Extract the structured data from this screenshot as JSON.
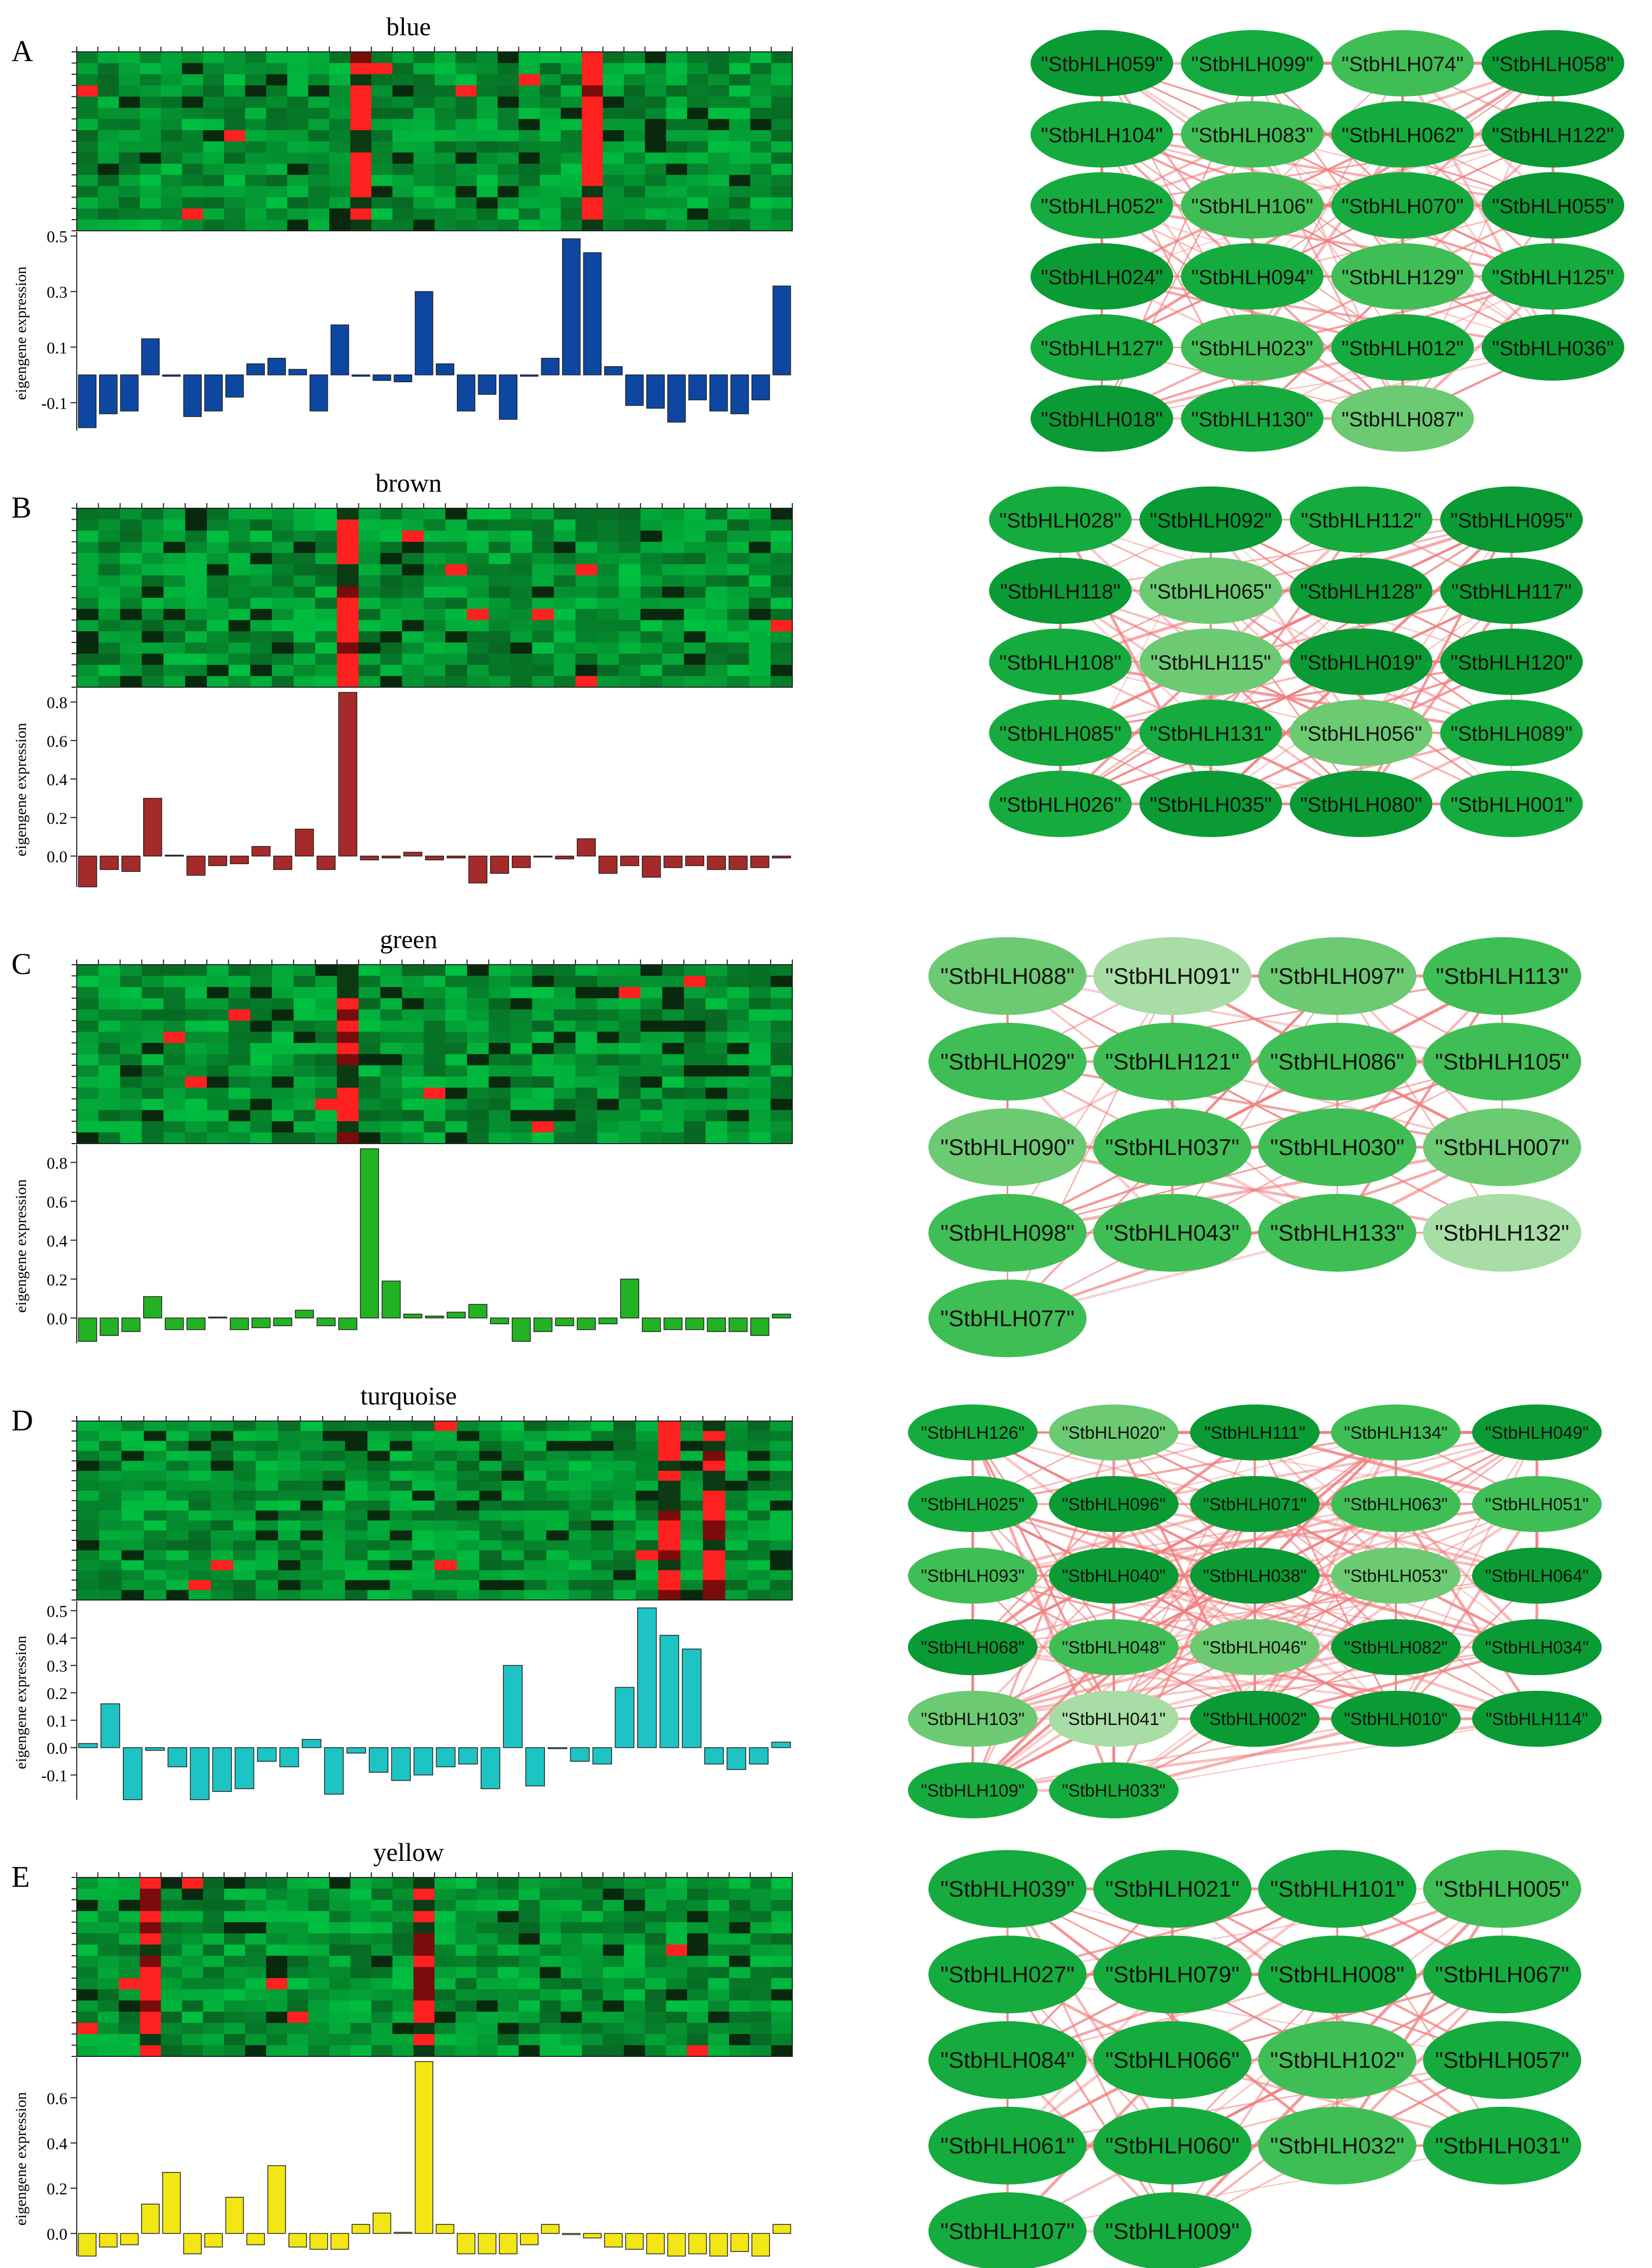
{
  "panels": [
    {
      "letter": "A",
      "module": "blue",
      "bar_color": "#0d47a1",
      "heatmap_rows": 16,
      "hot_cols": [
        13,
        24
      ],
      "chart_data": {
        "type": "bar",
        "ylabel": "eigengene expression",
        "yticks": [
          "-0.1",
          "0.1",
          "0.3",
          "0.5"
        ],
        "ytick_values": [
          -0.1,
          0.1,
          0.3,
          0.5
        ],
        "ylim": [
          -0.2,
          0.5
        ],
        "values": [
          -0.19,
          -0.14,
          -0.13,
          0.13,
          -0.005,
          -0.15,
          -0.13,
          -0.08,
          0.04,
          0.06,
          0.02,
          -0.13,
          0.18,
          -0.005,
          -0.02,
          -0.025,
          0.3,
          0.04,
          -0.13,
          -0.07,
          -0.16,
          -0.005,
          0.06,
          0.49,
          0.44,
          0.03,
          -0.11,
          -0.12,
          -0.17,
          -0.09,
          -0.13,
          -0.14,
          -0.09,
          0.32
        ]
      },
      "network": {
        "tone": [
          0,
          1,
          2,
          0,
          1,
          2,
          1,
          0,
          1,
          2,
          1,
          0,
          0,
          1,
          2,
          1,
          1,
          2,
          1,
          0,
          0,
          1,
          3
        ],
        "genes": [
          "\"StbHLH059\"",
          "\"StbHLH099\"",
          "\"StbHLH074\"",
          "\"StbHLH058\"",
          "\"StbHLH104\"",
          "\"StbHLH083\"",
          "\"StbHLH062\"",
          "\"StbHLH122\"",
          "\"StbHLH052\"",
          "\"StbHLH106\"",
          "\"StbHLH070\"",
          "\"StbHLH055\"",
          "\"StbHLH024\"",
          "\"StbHLH094\"",
          "\"StbHLH129\"",
          "\"StbHLH125\"",
          "\"StbHLH127\"",
          "\"StbHLH023\"",
          "\"StbHLH012\"",
          "\"StbHLH036\"",
          "\"StbHLH018\"",
          "\"StbHLH130\"",
          "\"StbHLH087\""
        ]
      }
    },
    {
      "letter": "B",
      "module": "brown",
      "bar_color": "#a52a2a",
      "heatmap_rows": 16,
      "hot_cols": [
        12
      ],
      "chart_data": {
        "type": "bar",
        "ylabel": "eigengene expression",
        "yticks": [
          "0.0",
          "0.2",
          "0.4",
          "0.6",
          "0.8"
        ],
        "ytick_values": [
          0.0,
          0.2,
          0.4,
          0.6,
          0.8
        ],
        "ylim": [
          -0.16,
          0.85
        ],
        "values": [
          -0.16,
          -0.07,
          -0.08,
          0.3,
          0.005,
          -0.1,
          -0.05,
          -0.04,
          0.05,
          -0.07,
          0.14,
          -0.07,
          0.85,
          -0.02,
          -0.01,
          0.02,
          -0.02,
          -0.01,
          -0.14,
          -0.09,
          -0.06,
          -0.005,
          -0.015,
          0.09,
          -0.09,
          -0.05,
          -0.11,
          -0.06,
          -0.05,
          -0.07,
          -0.07,
          -0.06,
          -0.01
        ]
      },
      "network": {
        "tone": [
          1,
          0,
          1,
          0,
          0,
          3,
          0,
          0,
          1,
          3,
          0,
          0,
          1,
          1,
          3,
          1,
          1,
          0,
          0,
          1
        ],
        "genes": [
          "\"StbHLH028\"",
          "\"StbHLH092\"",
          "\"StbHLH112\"",
          "\"StbHLH095\"",
          "\"StbHLH118\"",
          "\"StbHLH065\"",
          "\"StbHLH128\"",
          "\"StbHLH117\"",
          "\"StbHLH108\"",
          "\"StbHLH115\"",
          "\"StbHLH019\"",
          "\"StbHLH120\"",
          "\"StbHLH085\"",
          "\"StbHLH131\"",
          "\"StbHLH056\"",
          "\"StbHLH089\"",
          "\"StbHLH026\"",
          "\"StbHLH035\"",
          "\"StbHLH080\"",
          "\"StbHLH001\""
        ]
      }
    },
    {
      "letter": "C",
      "module": "green",
      "bar_color": "#22b222",
      "heatmap_rows": 16,
      "hot_cols": [
        12
      ],
      "chart_data": {
        "type": "bar",
        "ylabel": "eigengene expression",
        "yticks": [
          "0.0",
          "0.2",
          "0.4",
          "0.6",
          "0.8"
        ],
        "ytick_values": [
          0.0,
          0.2,
          0.4,
          0.6,
          0.8
        ],
        "ylim": [
          -0.13,
          0.87
        ],
        "values": [
          -0.12,
          -0.09,
          -0.07,
          0.11,
          -0.06,
          -0.06,
          0.005,
          -0.06,
          -0.05,
          -0.04,
          0.04,
          -0.04,
          -0.06,
          0.87,
          0.19,
          0.02,
          0.01,
          0.03,
          0.07,
          -0.03,
          -0.12,
          -0.07,
          -0.04,
          -0.06,
          -0.03,
          0.2,
          -0.07,
          -0.06,
          -0.06,
          -0.07,
          -0.07,
          -0.09,
          0.02
        ]
      },
      "network": {
        "tone": [
          3,
          4,
          3,
          2,
          2,
          2,
          2,
          2,
          3,
          2,
          2,
          3,
          2,
          2,
          2,
          4,
          2
        ],
        "genes": [
          "\"StbHLH088\"",
          "\"StbHLH091\"",
          "\"StbHLH097\"",
          "\"StbHLH113\"",
          "\"StbHLH029\"",
          "\"StbHLH121\"",
          "\"StbHLH086\"",
          "\"StbHLH105\"",
          "\"StbHLH090\"",
          "\"StbHLH037\"",
          "\"StbHLH030\"",
          "\"StbHLH007\"",
          "\"StbHLH098\"",
          "\"StbHLH043\"",
          "\"StbHLH133\"",
          "\"StbHLH132\"",
          "\"StbHLH077\""
        ]
      }
    },
    {
      "letter": "D",
      "module": "turquoise",
      "bar_color": "#1ec3c3",
      "heatmap_rows": 18,
      "hot_cols": [
        26,
        28
      ],
      "chart_data": {
        "type": "bar",
        "ylabel": "eigengene expression",
        "yticks": [
          "-0.1",
          "0.0",
          "0.1",
          "0.2",
          "0.3",
          "0.4",
          "0.5"
        ],
        "ytick_values": [
          -0.1,
          0.0,
          0.1,
          0.2,
          0.3,
          0.4,
          0.5
        ],
        "ylim": [
          -0.19,
          0.52
        ],
        "values": [
          0.015,
          0.16,
          -0.19,
          -0.01,
          -0.07,
          -0.19,
          -0.16,
          -0.15,
          -0.05,
          -0.07,
          0.03,
          -0.17,
          -0.02,
          -0.09,
          -0.12,
          -0.1,
          -0.07,
          -0.06,
          -0.15,
          0.3,
          -0.14,
          0.0,
          -0.05,
          -0.06,
          0.22,
          0.51,
          0.41,
          0.36,
          -0.06,
          -0.08,
          -0.06,
          0.02
        ]
      },
      "network": {
        "tone": [
          1,
          3,
          0,
          2,
          0,
          1,
          0,
          0,
          2,
          2,
          2,
          0,
          0,
          3,
          0,
          0,
          2,
          3,
          0,
          0,
          3,
          4,
          0,
          0,
          0,
          1,
          1
        ],
        "genes": [
          "\"StbHLH126\"",
          "\"StbHLH020\"",
          "\"StbHLH111\"",
          "\"StbHLH134\"",
          "\"StbHLH049\"",
          "\"StbHLH025\"",
          "\"StbHLH096\"",
          "\"StbHLH071\"",
          "\"StbHLH063\"",
          "\"StbHLH051\"",
          "\"StbHLH093\"",
          "\"StbHLH040\"",
          "\"StbHLH038\"",
          "\"StbHLH053\"",
          "\"StbHLH064\"",
          "\"StbHLH068\"",
          "\"StbHLH048\"",
          "\"StbHLH046\"",
          "\"StbHLH082\"",
          "\"StbHLH034\"",
          "\"StbHLH103\"",
          "\"StbHLH041\"",
          "\"StbHLH002\"",
          "\"StbHLH010\"",
          "\"StbHLH114\"",
          "\"StbHLH109\"",
          "\"StbHLH033\""
        ]
      }
    },
    {
      "letter": "E",
      "module": "yellow",
      "bar_color": "#f2e614",
      "heatmap_rows": 16,
      "hot_cols": [
        3,
        16
      ],
      "chart_data": {
        "type": "bar",
        "ylabel": "eigengene expression",
        "yticks": [
          "0.0",
          "0.2",
          "0.4",
          "0.6"
        ],
        "ytick_values": [
          0.0,
          0.2,
          0.4,
          0.6
        ],
        "ylim": [
          -0.1,
          0.76
        ],
        "values": [
          -0.1,
          -0.06,
          -0.05,
          0.13,
          0.27,
          -0.09,
          -0.06,
          0.16,
          -0.05,
          0.3,
          -0.06,
          -0.07,
          -0.07,
          0.04,
          0.09,
          0.005,
          0.76,
          0.04,
          -0.09,
          -0.09,
          -0.09,
          -0.05,
          0.04,
          -0.005,
          -0.02,
          -0.06,
          -0.07,
          -0.09,
          -0.1,
          -0.09,
          -0.1,
          -0.08,
          -0.1,
          0.04
        ]
      },
      "network": {
        "tone": [
          1,
          1,
          1,
          2,
          1,
          1,
          1,
          1,
          1,
          1,
          2,
          1,
          1,
          1,
          2,
          1,
          1,
          1
        ],
        "genes": [
          "\"StbHLH039\"",
          "\"StbHLH021\"",
          "\"StbHLH101\"",
          "\"StbHLH005\"",
          "\"StbHLH027\"",
          "\"StbHLH079\"",
          "\"StbHLH008\"",
          "\"StbHLH067\"",
          "\"StbHLH084\"",
          "\"StbHLH066\"",
          "\"StbHLH102\"",
          "\"StbHLH057\"",
          "\"StbHLH061\"",
          "\"StbHLH060\"",
          "\"StbHLH032\"",
          "\"StbHLH031\"",
          "\"StbHLH107\"",
          "\"StbHLH009\""
        ]
      }
    }
  ],
  "colors": {
    "heat_low": "#00c040",
    "heat_mid": "#0b3a14",
    "heat_high": "#ff2020",
    "edge": "#f08080",
    "node_tones": [
      "#0a9b35",
      "#16ab3e",
      "#3fbe55",
      "#6cca72",
      "#a8dda6"
    ]
  }
}
